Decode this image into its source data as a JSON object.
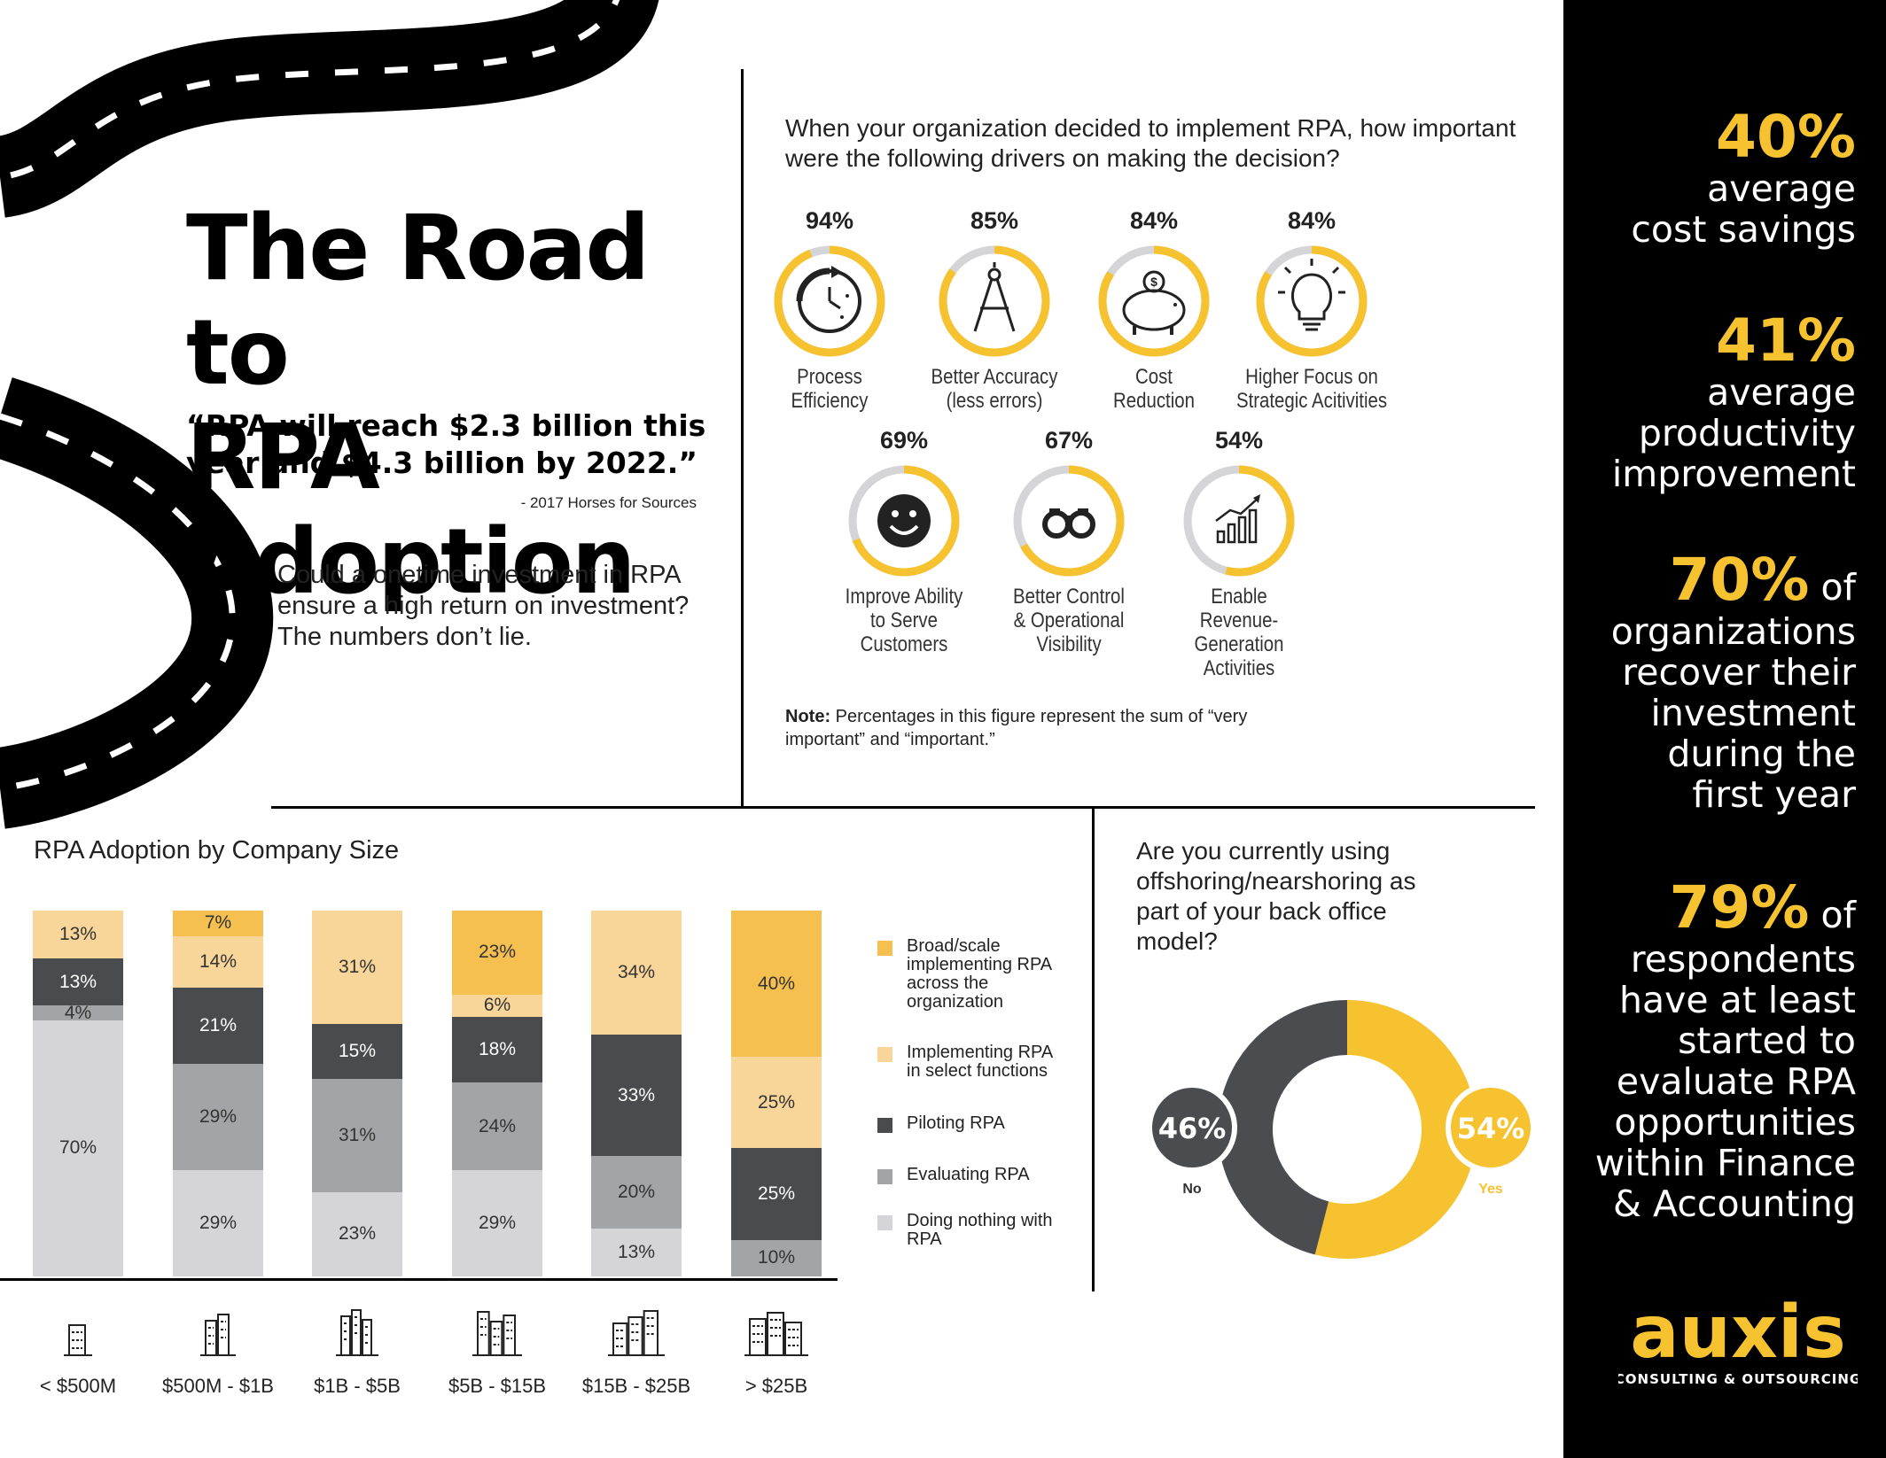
{
  "title": {
    "line1": "The Road to",
    "line2": "RPA Adoption"
  },
  "quote": {
    "text": "“RPA will reach $2.3 billion this year and $4.3 billion by 2022.”",
    "source": "- 2017 Horses for Sources"
  },
  "intro": "Could a onetime investment in RPA ensure a high return on investment? The numbers don’t lie.",
  "drivers": {
    "question": "When your organization decided to implement RPA, how important were the following drivers on making the decision?",
    "items": [
      {
        "pct": "94%",
        "value": 94,
        "line1": "Process",
        "line2": "Efficiency",
        "icon": "clock-icon"
      },
      {
        "pct": "85%",
        "value": 85,
        "line1": "Better Accuracy",
        "line2": "(less errors)",
        "icon": "compass-icon"
      },
      {
        "pct": "84%",
        "value": 84,
        "line1": "Cost",
        "line2": "Reduction",
        "icon": "piggy-bank-icon"
      },
      {
        "pct": "84%",
        "value": 84,
        "line1": "Higher Focus on",
        "line2": "Strategic Acitivities",
        "icon": "lightbulb-icon"
      },
      {
        "pct": "69%",
        "value": 69,
        "line1": "Improve Ability",
        "line2": "to Serve",
        "line3": "Customers",
        "icon": "smiley-icon"
      },
      {
        "pct": "67%",
        "value": 67,
        "line1": "Better Control",
        "line2": "& Operational",
        "line3": "Visibility",
        "icon": "binoculars-icon"
      },
      {
        "pct": "54%",
        "value": 54,
        "line1": "Enable",
        "line2": "Revenue-Generation",
        "line3": "Activities",
        "icon": "growth-chart-icon"
      }
    ],
    "note_bold": "Note:",
    "note_text": "Percentages in this figure represent the sum of “very important” and “important.”"
  },
  "stats": [
    {
      "big": "40%",
      "line1": "average",
      "line2": "cost savings"
    },
    {
      "big": "41%",
      "line1": "average",
      "line2": "productivity",
      "line3": "improvement"
    },
    {
      "big": "70%",
      "suffix": "of",
      "line1": "organizations",
      "line2": "recover their",
      "line3": "investment",
      "line4": "during the",
      "line5": "first year"
    },
    {
      "big": "79%",
      "suffix": "of",
      "line1": "respondents",
      "line2": "have at least",
      "line3": "started to",
      "line4": "evaluate RPA",
      "line5": "opportunities",
      "line6": "within Finance",
      "line7": "& Accounting"
    }
  ],
  "colors": {
    "broad": "#f5c050",
    "implementing": "#f8d598",
    "piloting": "#4a4b4f",
    "evaluating": "#a3a4a7",
    "nothing": "#d5d5d7",
    "yellow": "#f6c230",
    "dark": "#4b4c50"
  },
  "bars": {
    "title": "RPA Adoption by Company Size",
    "legend": [
      {
        "key": "broad",
        "label": "Broad/scale implementing RPA across the organization"
      },
      {
        "key": "implementing",
        "label": "Implementing RPA in select functions"
      },
      {
        "key": "piloting",
        "label": "Piloting RPA"
      },
      {
        "key": "evaluating",
        "label": "Evaluating RPA"
      },
      {
        "key": "nothing",
        "label": "Doing nothing with RPA"
      }
    ]
  },
  "chart_data": [
    {
      "type": "bar",
      "stacked": true,
      "categories": [
        "< $500M",
        "$500M - $1B",
        "$1B - $5B",
        "$5B - $15B",
        "$15B - $25B",
        "> $25B"
      ],
      "series": [
        {
          "name": "Doing nothing with RPA",
          "key": "nothing",
          "values": [
            70,
            29,
            23,
            29,
            13,
            0
          ]
        },
        {
          "name": "Evaluating RPA",
          "key": "evaluating",
          "values": [
            4,
            29,
            31,
            24,
            20,
            10
          ]
        },
        {
          "name": "Piloting RPA",
          "key": "piloting",
          "values": [
            13,
            21,
            15,
            18,
            33,
            25
          ]
        },
        {
          "name": "Implementing RPA in select functions",
          "key": "implementing",
          "values": [
            13,
            14,
            31,
            6,
            34,
            25
          ]
        },
        {
          "name": "Broad/scale implementing RPA across the organization",
          "key": "broad",
          "values": [
            0,
            7,
            0,
            23,
            0,
            40
          ]
        }
      ],
      "labels": [
        [
          "70%",
          "29%",
          "23%",
          "29%",
          "13%",
          ""
        ],
        [
          "4%",
          "29%",
          "31%",
          "24%",
          "20%",
          "10%"
        ],
        [
          "13%",
          "21%",
          "15%",
          "18%",
          "33%",
          "25%"
        ],
        [
          "13%",
          "14%",
          "31%",
          "6%",
          "34%",
          "25%"
        ],
        [
          "",
          "7%",
          "",
          "23%",
          "",
          "40%"
        ]
      ],
      "ylim": [
        0,
        100
      ],
      "legend": "right"
    },
    {
      "type": "pie",
      "donut": true,
      "question": "Are you currently using offshoring/nearshoring as part of your back office model?",
      "slices": [
        {
          "name": "No",
          "value": 46,
          "label": "46%",
          "color": "#4b4c50"
        },
        {
          "name": "Yes",
          "value": 54,
          "label": "54%",
          "color": "#f6c230"
        }
      ]
    }
  ],
  "logo": {
    "name": "auxis",
    "tagline": "CONSULTING & OUTSOURCING"
  }
}
